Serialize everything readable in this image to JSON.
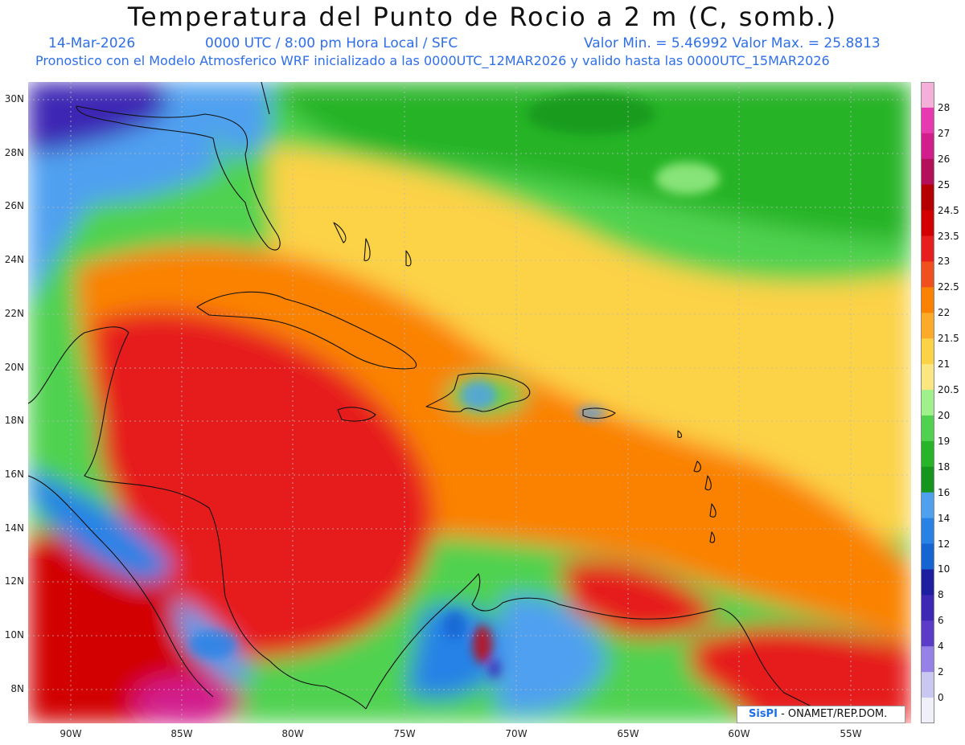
{
  "title": "Temperatura del Punto de Rocio a 2 m (C, somb.)",
  "header": {
    "date": "14-Mar-2026",
    "time": "0000 UTC / 8:00 pm Hora Local / SFC",
    "minmax": "Valor Min. = 5.46992  Valor Max. = 25.8813",
    "model_line": "Pronostico con el Modelo Atmosferico WRF inicializado a las 0000UTC_12MAR2026 y valido hasta las  0000UTC_15MAR2026"
  },
  "map": {
    "lat_labels": [
      "30N",
      "28N",
      "26N",
      "24N",
      "22N",
      "20N",
      "18N",
      "16N",
      "14N",
      "12N",
      "10N",
      "8N"
    ],
    "lon_labels": [
      "90W",
      "85W",
      "80W",
      "75W",
      "70W",
      "65W",
      "60W",
      "55W"
    ]
  },
  "legend": {
    "labels": [
      "28",
      "27",
      "26",
      "25",
      "24.5",
      "23.5",
      "23",
      "22.5",
      "22",
      "21.5",
      "21",
      "20.5",
      "20",
      "19",
      "18",
      "16",
      "14",
      "12",
      "10",
      "8",
      "6",
      "4",
      "2",
      "0"
    ],
    "colors": [
      "#f4b0d8",
      "#e83ab0",
      "#d21e8c",
      "#b4105a",
      "#b40000",
      "#d20000",
      "#e61e1e",
      "#f0501e",
      "#fa8200",
      "#fcaa28",
      "#fcd246",
      "#fce682",
      "#a0f08c",
      "#50d250",
      "#28b428",
      "#14961e",
      "#50a0f0",
      "#2882e6",
      "#1464d2",
      "#1e1ea0",
      "#3c28b4",
      "#5a3cc8",
      "#9682e6",
      "#c8c8f0",
      "#f0f0f8"
    ],
    "levels": [
      28,
      27,
      26,
      25,
      24.5,
      23.5,
      23,
      22.5,
      22,
      21.5,
      21,
      20.5,
      20,
      19,
      18,
      16,
      14,
      12,
      10,
      8,
      6,
      4,
      2,
      0
    ]
  },
  "credit": {
    "logo": "SisPI",
    "text": "- ONAMET/REP.DOM."
  }
}
